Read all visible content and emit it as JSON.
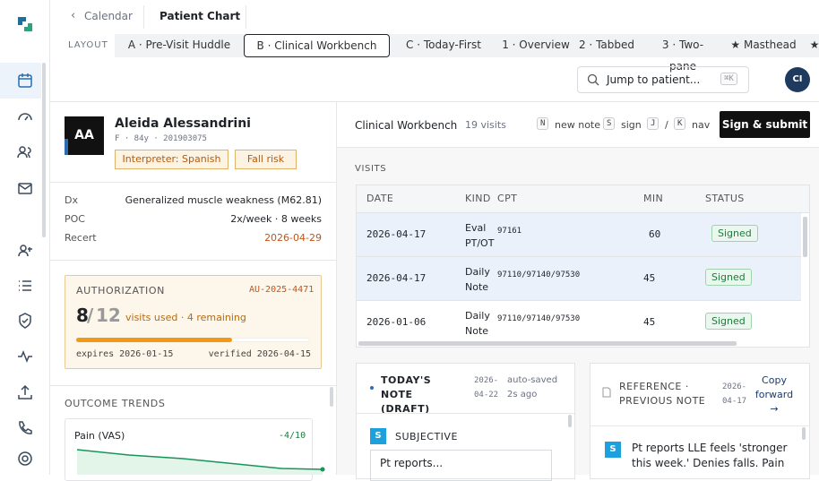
{
  "topbar": {
    "back": "Calendar",
    "title": "Patient Chart"
  },
  "layout": {
    "label": "LAYOUT",
    "selected": 1,
    "tabs": [
      "A · Pre-Visit Huddle",
      "B · Clinical Workbench",
      "C · Today-First",
      "1 · Overview",
      "2 · Tabbed",
      "3 · Two-pane",
      "★ Masthead",
      "★"
    ]
  },
  "search": {
    "placeholder": "Jump to patient...",
    "shortcut": "⌘K"
  },
  "user": {
    "initials": "CI"
  },
  "patient": {
    "initials": "AA",
    "name": "Aleida Alessandrini",
    "meta": "F · 84y · 201903075",
    "tags": [
      "Interpreter: Spanish",
      "Fall risk"
    ],
    "facts": [
      [
        "Dx",
        "Generalized muscle weakness (M62.81)"
      ],
      [
        "POC",
        "2x/week · 8 weeks"
      ],
      [
        "Recert",
        "2026-04-29"
      ]
    ]
  },
  "authorization": {
    "label": "AUTHORIZATION",
    "id": "AU-2025-4471",
    "used": 8,
    "total": 12,
    "summary": "visits used · 4 remaining",
    "expires": "expires 2026-01-15",
    "verified": "verified 2026-04-15"
  },
  "outcomes": {
    "label": "OUTCOME TRENDS",
    "metric": "Pain (VAS)",
    "change": "-4/10"
  },
  "workbench": {
    "title": "Clinical Workbench",
    "count": "19 visits",
    "shortcuts": [
      [
        "N",
        "new note"
      ],
      [
        "S",
        "sign"
      ],
      [
        "J",
        "/"
      ],
      [
        "K",
        "nav"
      ]
    ],
    "action": "Sign & submit"
  },
  "visits": {
    "label": "VISITS",
    "columns": [
      "DATE",
      "KIND",
      "CPT",
      "MIN",
      "STATUS"
    ],
    "rows": [
      [
        "2026-04-17",
        "Eval PT/OT",
        "97161",
        "60",
        "Signed"
      ],
      [
        "2026-04-17",
        "Daily Note",
        "97110/97140/97530",
        "45",
        "Signed"
      ],
      [
        "2026-01-06",
        "Daily Note",
        "97110/97140/97530",
        "45",
        "Signed"
      ]
    ]
  },
  "today_note": {
    "title": "TODAY'S NOTE (DRAFT)",
    "date": "2026-04-22",
    "status": "auto-saved 2s ago",
    "section_badge": "S",
    "section": "SUBJECTIVE",
    "text": "Pt reports..."
  },
  "reference": {
    "title": "REFERENCE · PREVIOUS NOTE",
    "date": "2026-04-17",
    "action": "Copy forward →",
    "badge": "S",
    "text": "Pt reports LLE feels 'stronger this week.' Denies falls. Pain"
  }
}
